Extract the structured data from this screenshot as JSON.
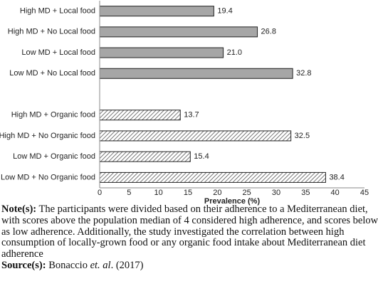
{
  "chart_data": {
    "type": "hbar",
    "categories": [
      "High MD + Local food",
      "High MD + No Local food",
      "Low MD + Local food",
      "Low MD + No Local food",
      null,
      "High MD + Organic food",
      "High MD + No Organic food",
      "Low MD + Organic food",
      "Low MD + No Organic food"
    ],
    "values": [
      19.4,
      26.8,
      21.0,
      32.8,
      null,
      13.7,
      32.5,
      15.4,
      38.4
    ],
    "value_labels": [
      "19.4",
      "26.8",
      "21.0",
      "32.8",
      null,
      "13.7",
      "32.5",
      "15.4",
      "38.4"
    ],
    "styles": [
      "solid",
      "solid",
      "solid",
      "solid",
      null,
      "hatch",
      "hatch",
      "hatch",
      "hatch"
    ],
    "color": "#a6a6a6",
    "xlabel": "Prevalence (%)",
    "xlim": [
      0,
      45
    ],
    "xticks": [
      0,
      5,
      10,
      15,
      20,
      25,
      30,
      35,
      40,
      45
    ],
    "grid": false
  },
  "note": {
    "label": "Note(s):",
    "lines": [
      " The participants were divided based on their adherence to a Mediterranean diet,",
      "with scores above the population median of 4 considered high adherence, and scores below",
      "as low adherence. Additionally, the study investigated the correlation between high",
      "consumption of locally-grown food or any organic food intake about Mediterranean diet",
      "adherence"
    ]
  },
  "source": {
    "label": "Source(s):",
    "parts": [
      " Bonaccio ",
      "et. al",
      ". (2017)"
    ]
  }
}
